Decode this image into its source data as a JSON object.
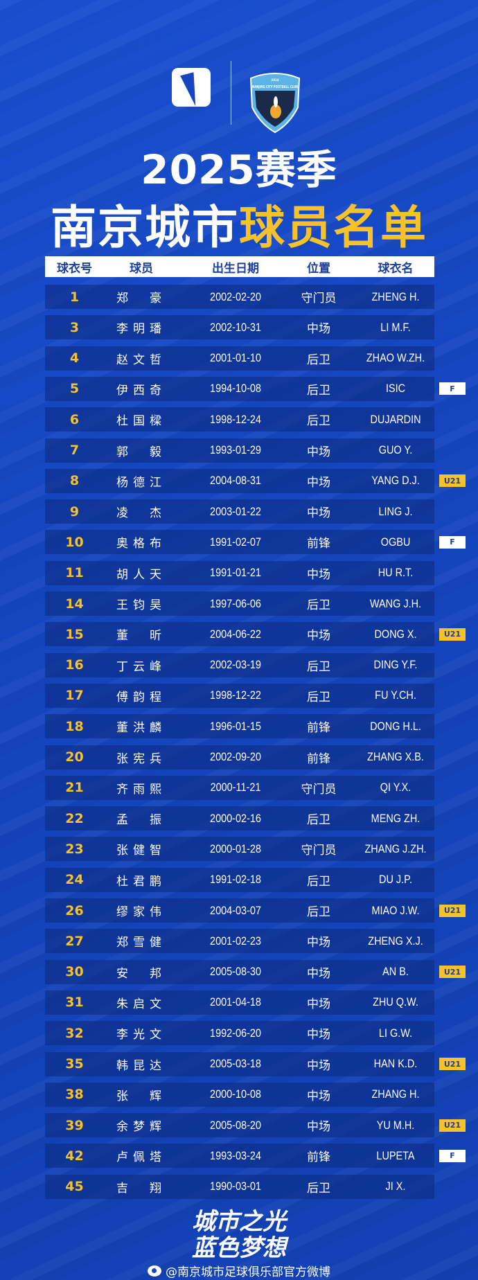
{
  "badge_logo_text": {
    "year": "2014",
    "club": "NANJING CITY FOOTBALL CLUB"
  },
  "title": {
    "line1": "2025赛季",
    "line2_white": "南京城市",
    "line2_yellow": "球员名单"
  },
  "colors": {
    "background": "#1546c0",
    "accent_yellow": "#f6c12b",
    "header_text": "#1b3f9c"
  },
  "table": {
    "headers": [
      "球衣号",
      "球员",
      "出生日期",
      "位置",
      "球衣名"
    ],
    "rows": [
      {
        "num": "1",
        "name": "郑　豪",
        "dob": "2002-02-20",
        "pos": "守门员",
        "jersey": "ZHENG H.",
        "tag": ""
      },
      {
        "num": "3",
        "name": "李明璠",
        "dob": "2002-10-31",
        "pos": "中场",
        "jersey": "LI M.F.",
        "tag": ""
      },
      {
        "num": "4",
        "name": "赵文哲",
        "dob": "2001-01-10",
        "pos": "后卫",
        "jersey": "ZHAO W.ZH.",
        "tag": ""
      },
      {
        "num": "5",
        "name": "伊西奇",
        "dob": "1994-10-08",
        "pos": "后卫",
        "jersey": "ISIC",
        "tag": "F"
      },
      {
        "num": "6",
        "name": "杜国樑",
        "dob": "1998-12-24",
        "pos": "后卫",
        "jersey": "DUJARDIN",
        "tag": ""
      },
      {
        "num": "7",
        "name": "郭　毅",
        "dob": "1993-01-29",
        "pos": "中场",
        "jersey": "GUO Y.",
        "tag": ""
      },
      {
        "num": "8",
        "name": "杨德江",
        "dob": "2004-08-31",
        "pos": "中场",
        "jersey": "YANG D.J.",
        "tag": "U21"
      },
      {
        "num": "9",
        "name": "凌　杰",
        "dob": "2003-01-22",
        "pos": "中场",
        "jersey": "LING J.",
        "tag": ""
      },
      {
        "num": "10",
        "name": "奥格布",
        "dob": "1991-02-07",
        "pos": "前锋",
        "jersey": "OGBU",
        "tag": "F"
      },
      {
        "num": "11",
        "name": "胡人天",
        "dob": "1991-01-21",
        "pos": "中场",
        "jersey": "HU R.T.",
        "tag": ""
      },
      {
        "num": "14",
        "name": "王钧昊",
        "dob": "1997-06-06",
        "pos": "后卫",
        "jersey": "WANG J.H.",
        "tag": ""
      },
      {
        "num": "15",
        "name": "董　昕",
        "dob": "2004-06-22",
        "pos": "中场",
        "jersey": "DONG X.",
        "tag": "U21"
      },
      {
        "num": "16",
        "name": "丁云峰",
        "dob": "2002-03-19",
        "pos": "后卫",
        "jersey": "DING Y.F.",
        "tag": ""
      },
      {
        "num": "17",
        "name": "傅韵程",
        "dob": "1998-12-22",
        "pos": "后卫",
        "jersey": "FU Y.CH.",
        "tag": ""
      },
      {
        "num": "18",
        "name": "董洪麟",
        "dob": "1996-01-15",
        "pos": "前锋",
        "jersey": "DONG H.L.",
        "tag": ""
      },
      {
        "num": "20",
        "name": "张宪兵",
        "dob": "2002-09-20",
        "pos": "前锋",
        "jersey": "ZHANG X.B.",
        "tag": ""
      },
      {
        "num": "21",
        "name": "齐雨熙",
        "dob": "2000-11-21",
        "pos": "守门员",
        "jersey": "QI Y.X.",
        "tag": ""
      },
      {
        "num": "22",
        "name": "孟　振",
        "dob": "2000-02-16",
        "pos": "后卫",
        "jersey": "MENG ZH.",
        "tag": ""
      },
      {
        "num": "23",
        "name": "张健智",
        "dob": "2000-01-28",
        "pos": "守门员",
        "jersey": "ZHANG J.ZH.",
        "tag": ""
      },
      {
        "num": "24",
        "name": "杜君鹏",
        "dob": "1991-02-18",
        "pos": "后卫",
        "jersey": "DU J.P.",
        "tag": ""
      },
      {
        "num": "26",
        "name": "缪家伟",
        "dob": "2004-03-07",
        "pos": "后卫",
        "jersey": "MIAO J.W.",
        "tag": "U21"
      },
      {
        "num": "27",
        "name": "郑雪健",
        "dob": "2001-02-23",
        "pos": "中场",
        "jersey": "ZHENG X.J.",
        "tag": ""
      },
      {
        "num": "30",
        "name": "安　邦",
        "dob": "2005-08-30",
        "pos": "中场",
        "jersey": "AN B.",
        "tag": "U21"
      },
      {
        "num": "31",
        "name": "朱启文",
        "dob": "2001-04-18",
        "pos": "中场",
        "jersey": "ZHU Q.W.",
        "tag": ""
      },
      {
        "num": "32",
        "name": "李光文",
        "dob": "1992-06-20",
        "pos": "中场",
        "jersey": "LI G.W.",
        "tag": ""
      },
      {
        "num": "35",
        "name": "韩昆达",
        "dob": "2005-03-18",
        "pos": "中场",
        "jersey": "HAN K.D.",
        "tag": "U21"
      },
      {
        "num": "38",
        "name": "张　辉",
        "dob": "2000-10-08",
        "pos": "中场",
        "jersey": "ZHANG H.",
        "tag": ""
      },
      {
        "num": "39",
        "name": "余梦辉",
        "dob": "2005-08-20",
        "pos": "中场",
        "jersey": "YU M.H.",
        "tag": "U21"
      },
      {
        "num": "42",
        "name": "卢佩塔",
        "dob": "1993-03-24",
        "pos": "前锋",
        "jersey": "LUPETA",
        "tag": "F"
      },
      {
        "num": "45",
        "name": "吉　翔",
        "dob": "1990-03-01",
        "pos": "后卫",
        "jersey": "JI X.",
        "tag": ""
      }
    ]
  },
  "footer": {
    "slogan1": "城市之光",
    "slogan2": "蓝色梦想",
    "weibo": "@南京城市足球俱乐部官方微博",
    "weibo_icon": "weibo-icon"
  }
}
